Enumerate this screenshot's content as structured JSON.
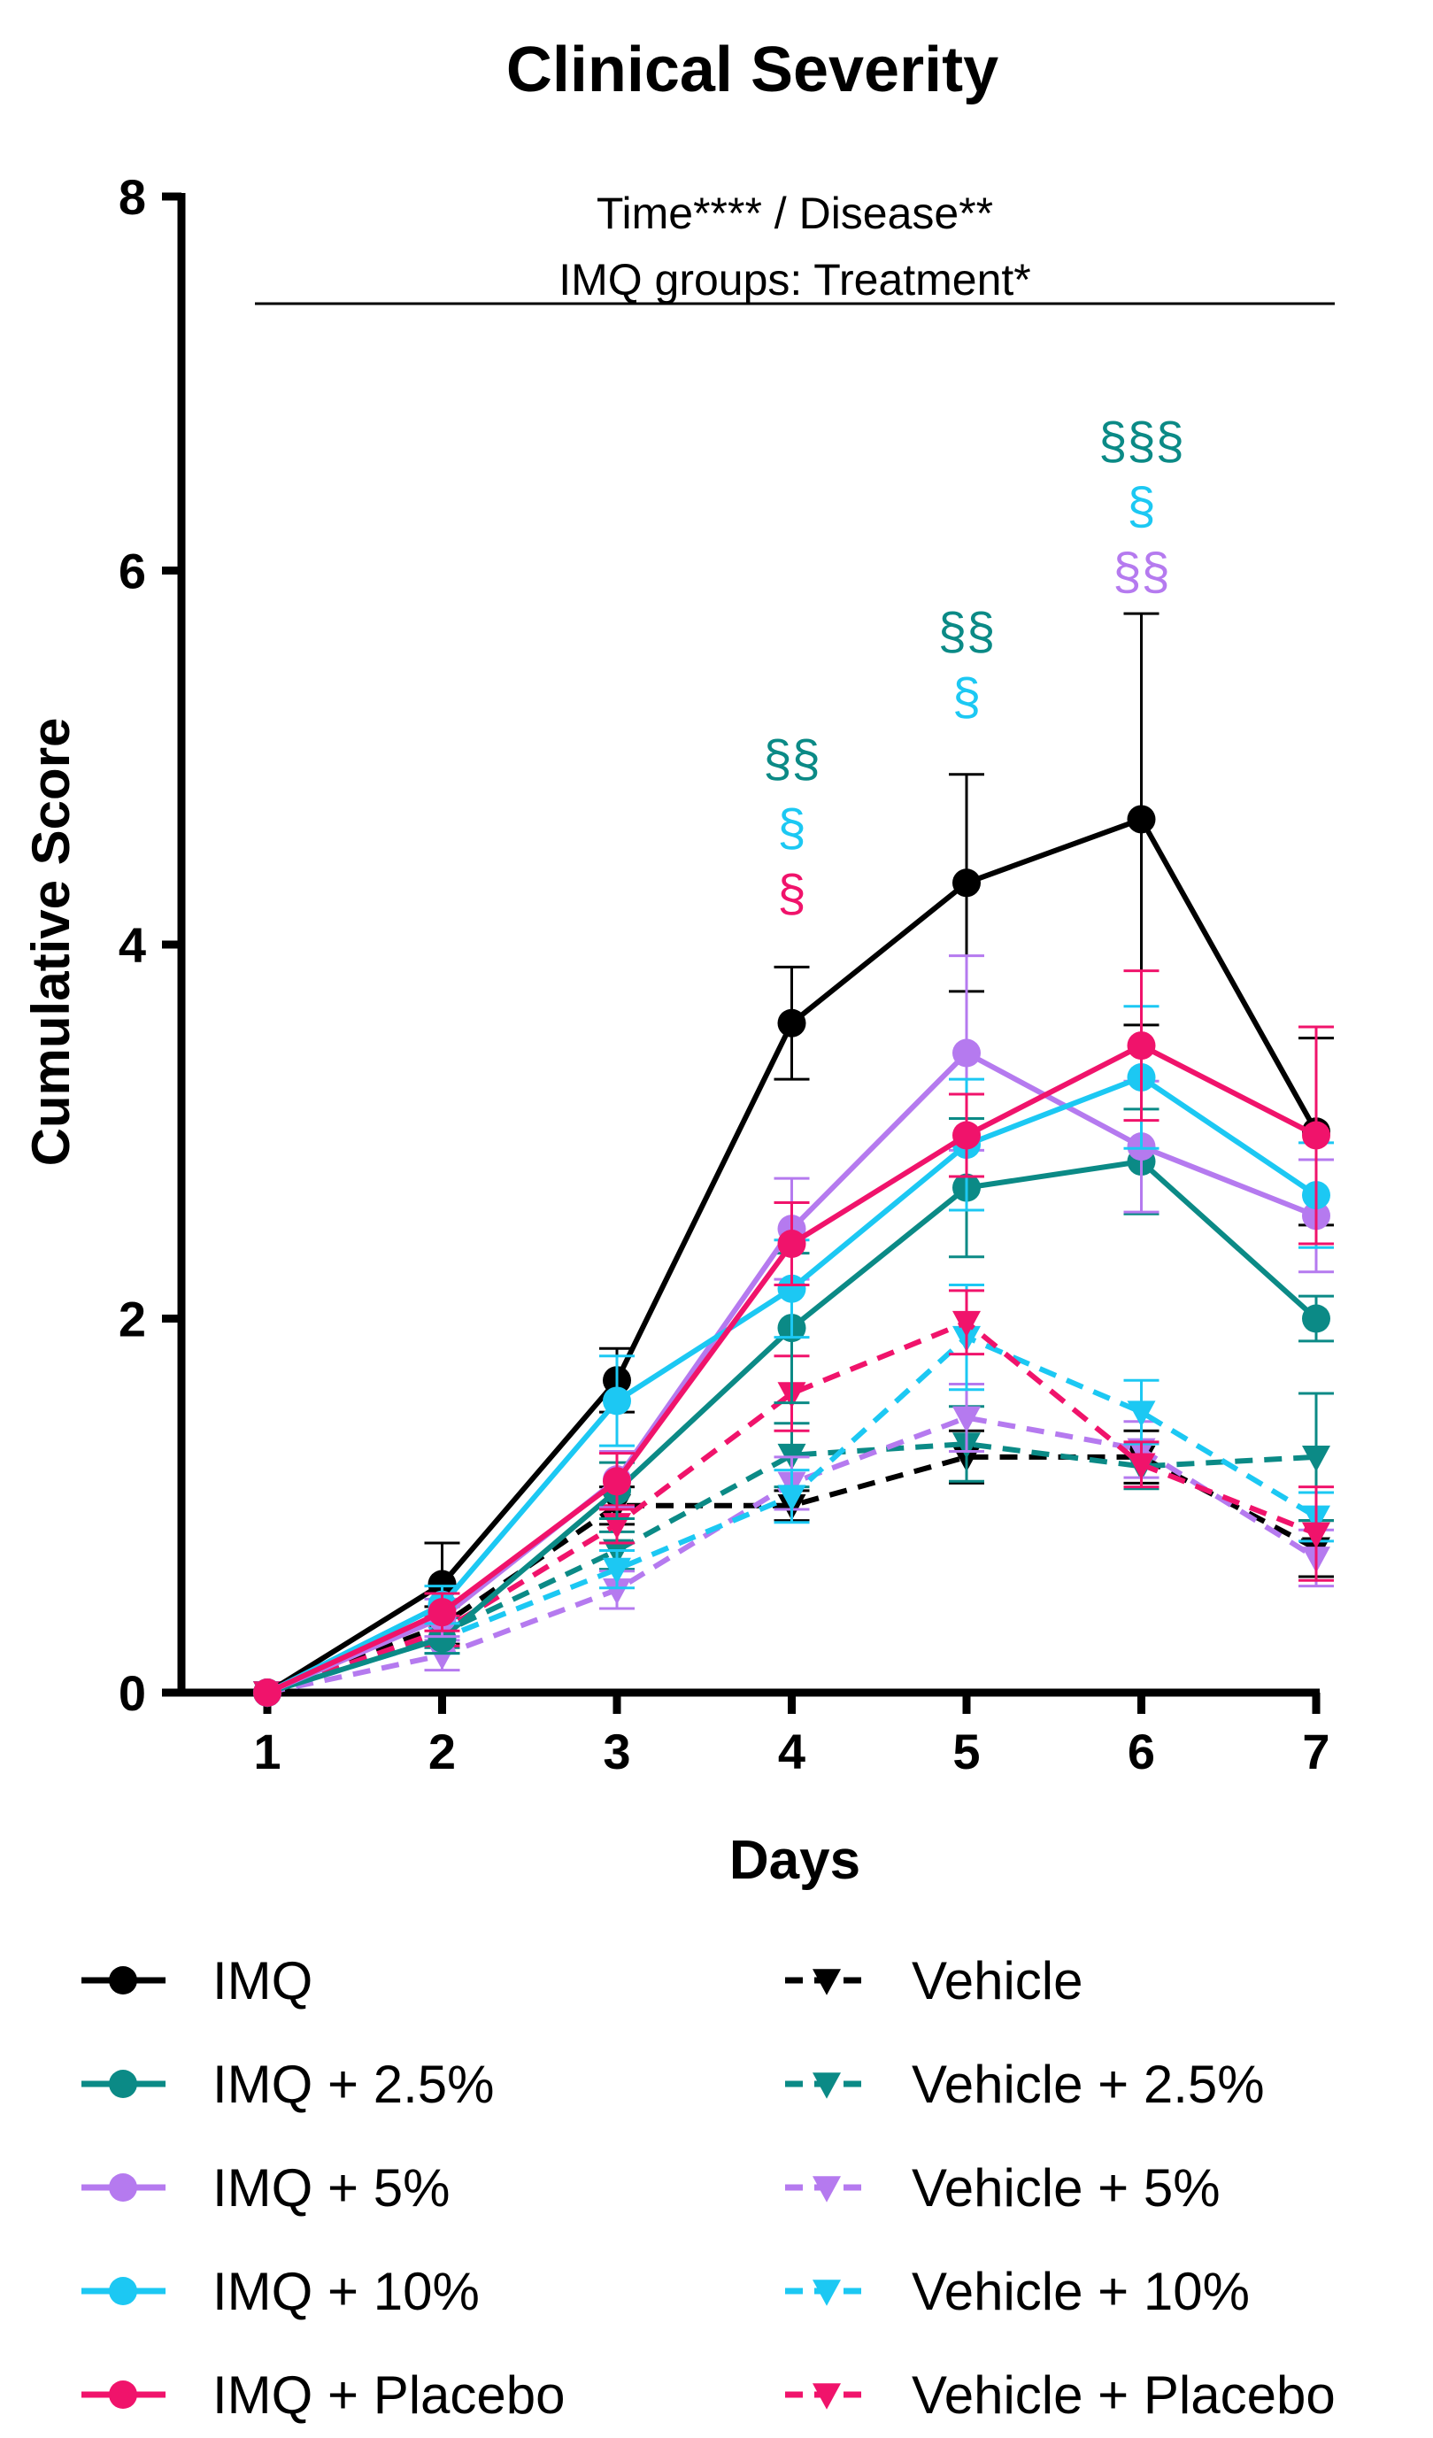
{
  "chart_data": {
    "type": "line",
    "title": "Clinical Severity",
    "xlabel": "Days",
    "ylabel": "Cumulative Score",
    "x": [
      1,
      2,
      3,
      4,
      5,
      6,
      7
    ],
    "xlim": [
      0.5,
      7
    ],
    "ylim": [
      0,
      8
    ],
    "yticks": [
      0,
      2,
      4,
      6,
      8
    ],
    "xticks": [
      1,
      2,
      3,
      4,
      5,
      6,
      7
    ],
    "header_annotation": [
      "Time**** / Disease**",
      "IMQ groups: Treatment*"
    ],
    "series": [
      {
        "name": "IMQ",
        "color": "#000000",
        "dashed": false,
        "marker": "circle",
        "values": [
          0,
          0.58,
          1.67,
          3.58,
          4.33,
          4.67,
          3.0
        ],
        "errors": [
          0,
          0.22,
          0.17,
          0.3,
          0.58,
          1.1,
          0.5
        ]
      },
      {
        "name": "IMQ + 2.5%",
        "color": "#0B8A86",
        "dashed": false,
        "marker": "circle",
        "values": [
          0,
          0.29,
          1.08,
          1.95,
          2.7,
          2.84,
          2.0
        ],
        "errors": [
          0,
          0.08,
          0.15,
          0.4,
          0.37,
          0.28,
          0.12
        ]
      },
      {
        "name": "IMQ + 5%",
        "color": "#B57AEF",
        "dashed": false,
        "marker": "circle",
        "values": [
          0,
          0.4,
          1.14,
          2.48,
          3.42,
          2.92,
          2.55
        ],
        "errors": [
          0,
          0.1,
          0.15,
          0.27,
          0.52,
          0.35,
          0.3
        ]
      },
      {
        "name": "IMQ + 10%",
        "color": "#1CC8F3",
        "dashed": false,
        "marker": "circle",
        "values": [
          0,
          0.47,
          1.56,
          2.16,
          2.93,
          3.29,
          2.66
        ],
        "errors": [
          0,
          0.1,
          0.24,
          0.26,
          0.35,
          0.38,
          0.28
        ]
      },
      {
        "name": "IMQ + Placebo",
        "color": "#F0136B",
        "dashed": false,
        "marker": "circle",
        "values": [
          0,
          0.43,
          1.13,
          2.4,
          2.98,
          3.46,
          2.98
        ],
        "errors": [
          0,
          0.1,
          0.15,
          0.22,
          0.22,
          0.4,
          0.58
        ]
      },
      {
        "name": "Vehicle",
        "color": "#000000",
        "dashed": true,
        "marker": "triangle",
        "values": [
          0,
          0.36,
          1.0,
          1.0,
          1.26,
          1.26,
          0.77
        ],
        "errors": [
          0,
          0.1,
          0.1,
          0.08,
          0.14,
          0.14,
          0.15
        ]
      },
      {
        "name": "Vehicle + 2.5%",
        "color": "#0B8A86",
        "dashed": true,
        "marker": "triangle",
        "values": [
          0,
          0.32,
          0.76,
          1.27,
          1.33,
          1.21,
          1.26
        ],
        "errors": [
          0,
          0.08,
          0.1,
          0.17,
          0.2,
          0.12,
          0.34
        ]
      },
      {
        "name": "Vehicle + 5%",
        "color": "#B57AEF",
        "dashed": true,
        "marker": "triangle",
        "values": [
          0,
          0.2,
          0.55,
          1.12,
          1.47,
          1.3,
          0.72
        ],
        "errors": [
          0,
          0.08,
          0.1,
          0.14,
          0.18,
          0.15,
          0.15
        ]
      },
      {
        "name": "Vehicle + 10%",
        "color": "#1CC8F3",
        "dashed": true,
        "marker": "triangle",
        "values": [
          0,
          0.29,
          0.66,
          1.05,
          1.9,
          1.5,
          0.94
        ],
        "errors": [
          0,
          0.08,
          0.1,
          0.14,
          0.28,
          0.17,
          0.13
        ]
      },
      {
        "name": "Vehicle + Placebo",
        "color": "#F0136B",
        "dashed": true,
        "marker": "triangle",
        "values": [
          0,
          0.33,
          0.9,
          1.6,
          1.98,
          1.22,
          0.85
        ],
        "errors": [
          0,
          0.08,
          0.1,
          0.2,
          0.17,
          0.12,
          0.25
        ]
      }
    ],
    "significance": [
      {
        "x": 4,
        "y": 4.9,
        "text": "§§",
        "color": "#0B8A86"
      },
      {
        "x": 4,
        "y": 4.53,
        "text": "§",
        "color": "#1CC8F3"
      },
      {
        "x": 4,
        "y": 4.18,
        "text": "§",
        "color": "#F0136B"
      },
      {
        "x": 5,
        "y": 5.58,
        "text": "§§",
        "color": "#0B8A86"
      },
      {
        "x": 5,
        "y": 5.23,
        "text": "§",
        "color": "#1CC8F3"
      },
      {
        "x": 6,
        "y": 6.6,
        "text": "§§§",
        "color": "#0B8A86"
      },
      {
        "x": 6,
        "y": 6.25,
        "text": "§",
        "color": "#1CC8F3"
      },
      {
        "x": 6,
        "y": 5.9,
        "text": "§§",
        "color": "#B57AEF"
      }
    ],
    "legend_position": "bottom"
  }
}
